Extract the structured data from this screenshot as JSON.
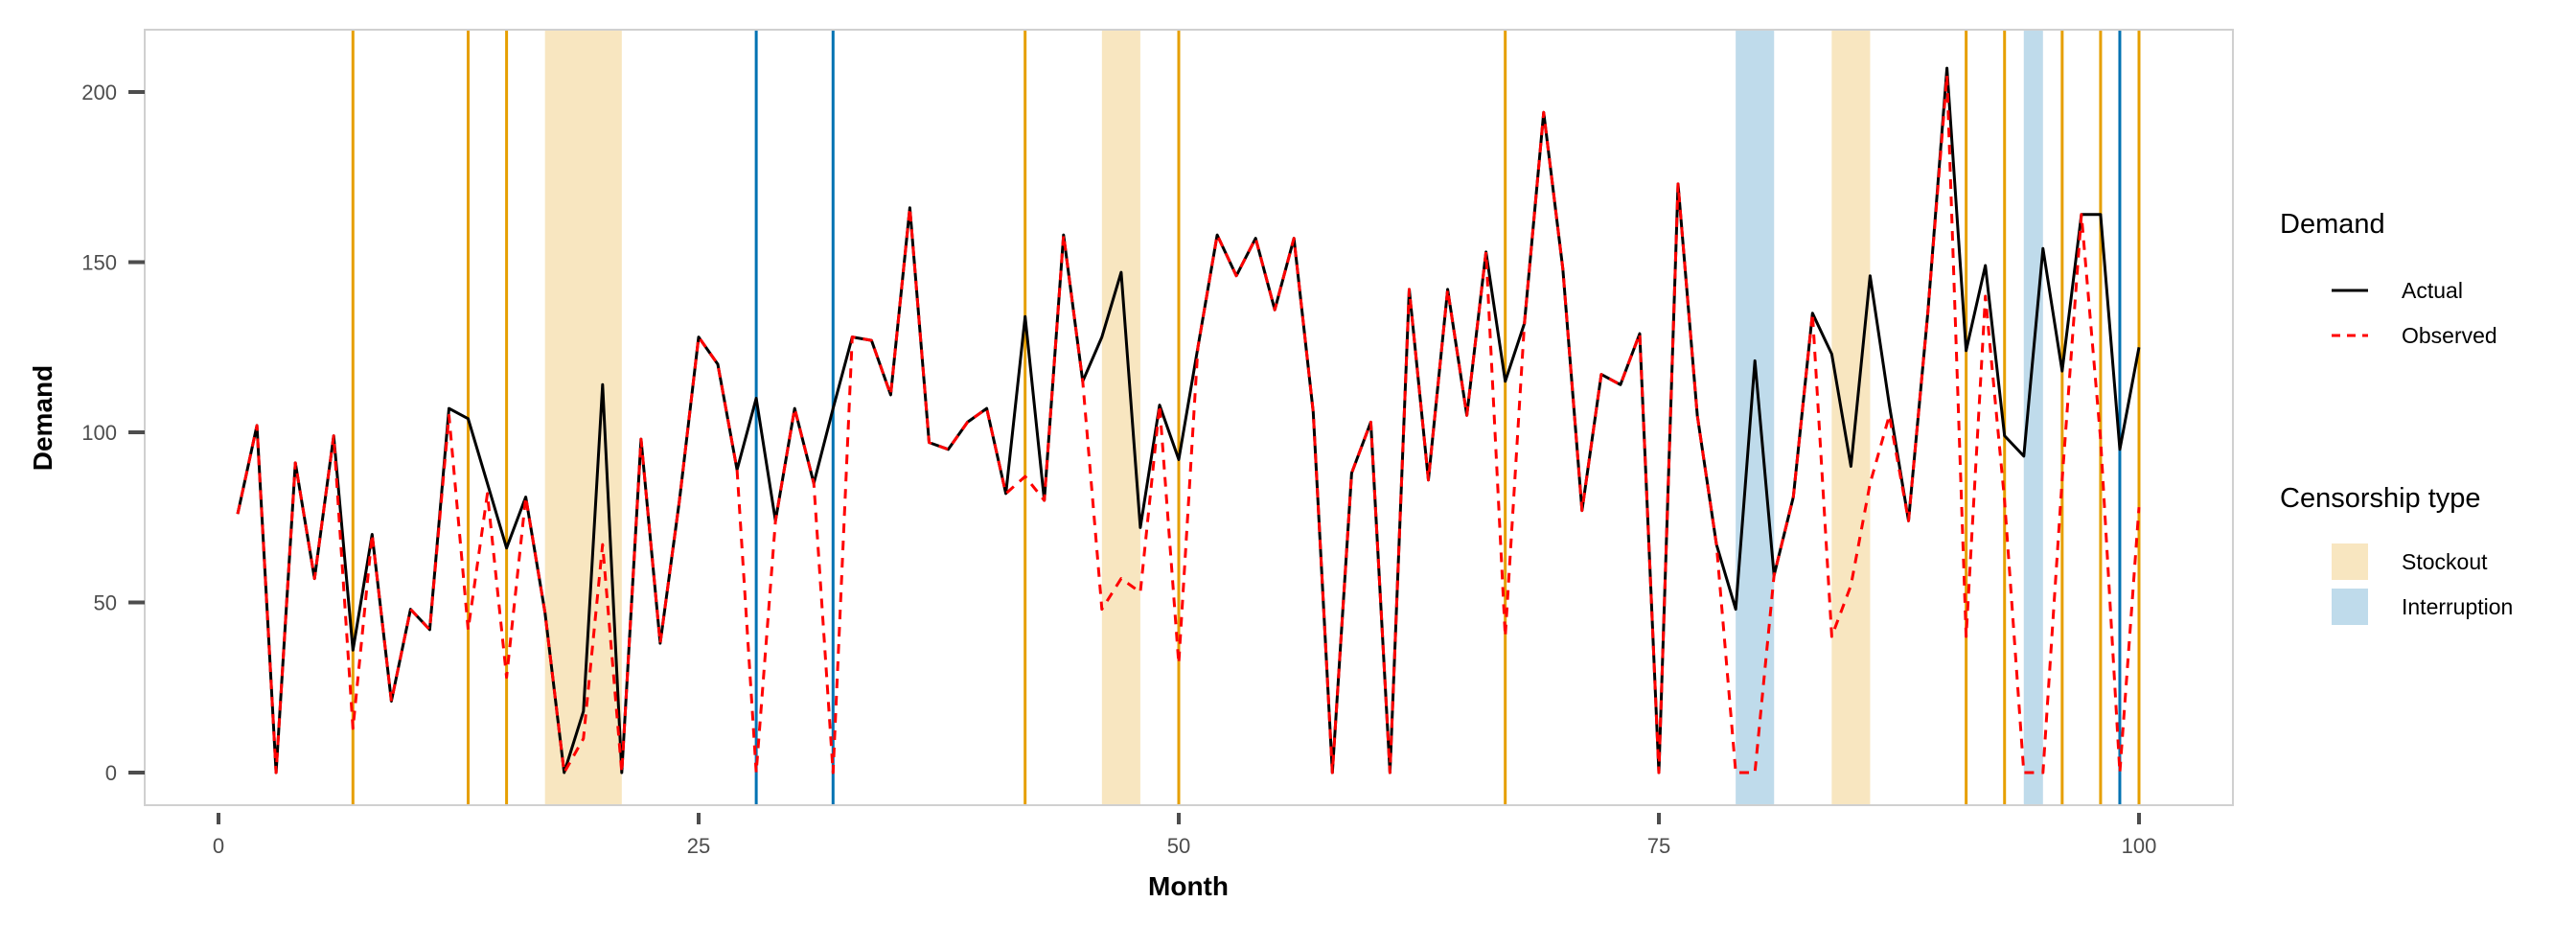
{
  "chart_data": {
    "type": "line",
    "title": "",
    "xlabel": "Month",
    "ylabel": "Demand",
    "xlim": [
      -3,
      105
    ],
    "ylim": [
      -10,
      218
    ],
    "xticks": [
      0,
      25,
      50,
      75,
      100
    ],
    "yticks": [
      0,
      50,
      100,
      150,
      200
    ],
    "grid": false,
    "x": [
      1,
      2,
      3,
      4,
      5,
      6,
      7,
      8,
      9,
      10,
      11,
      12,
      13,
      14,
      15,
      16,
      17,
      18,
      19,
      20,
      21,
      22,
      23,
      24,
      25,
      26,
      27,
      28,
      29,
      30,
      31,
      32,
      33,
      34,
      35,
      36,
      37,
      38,
      39,
      40,
      41,
      42,
      43,
      44,
      45,
      46,
      47,
      48,
      49,
      50,
      51,
      52,
      53,
      54,
      55,
      56,
      57,
      58,
      59,
      60,
      61,
      62,
      63,
      64,
      65,
      66,
      67,
      68,
      69,
      70,
      71,
      72,
      73,
      74,
      75,
      76,
      77,
      78,
      79,
      80,
      81,
      82,
      83,
      84,
      85,
      86,
      87,
      88,
      89,
      90,
      91,
      92,
      93,
      94,
      95,
      96,
      97,
      98,
      99,
      100
    ],
    "series": [
      {
        "name": "Actual",
        "color": "#000000",
        "dash": "solid",
        "values": [
          76,
          102,
          0,
          91,
          57,
          99,
          36,
          70,
          21,
          48,
          42,
          107,
          104,
          85,
          66,
          81,
          47,
          0,
          18,
          114,
          0,
          98,
          38,
          80,
          128,
          120,
          89,
          110,
          74,
          107,
          85,
          107,
          128,
          127,
          111,
          166,
          97,
          95,
          103,
          107,
          82,
          134,
          80,
          158,
          115,
          128,
          147,
          72,
          108,
          92,
          125,
          158,
          146,
          157,
          136,
          157,
          106,
          0,
          88,
          103,
          0,
          142,
          86,
          142,
          105,
          153,
          115,
          132,
          194,
          148,
          77,
          117,
          114,
          129,
          0,
          173,
          105,
          67,
          48,
          121,
          58,
          81,
          135,
          123,
          90,
          146,
          108,
          74,
          135,
          207,
          124,
          149,
          99,
          93,
          154,
          118,
          164,
          164,
          95,
          125
        ]
      },
      {
        "name": "Observed",
        "color": "#FF0000",
        "dash": "dashed",
        "values": [
          76,
          102,
          0,
          91,
          57,
          99,
          13,
          70,
          21,
          48,
          42,
          105,
          42,
          82,
          28,
          81,
          47,
          0,
          10,
          67,
          0,
          98,
          38,
          80,
          128,
          120,
          89,
          0,
          74,
          107,
          85,
          0,
          128,
          127,
          111,
          166,
          97,
          95,
          103,
          107,
          82,
          87,
          80,
          158,
          115,
          48,
          57,
          53,
          108,
          32,
          125,
          158,
          146,
          157,
          136,
          157,
          106,
          0,
          88,
          103,
          0,
          142,
          86,
          142,
          105,
          153,
          40,
          132,
          194,
          148,
          77,
          117,
          114,
          129,
          0,
          173,
          105,
          67,
          0,
          0,
          58,
          81,
          135,
          40,
          55,
          85,
          105,
          74,
          135,
          205,
          40,
          140,
          80,
          0,
          0,
          86,
          164,
          98,
          0,
          78
        ]
      }
    ],
    "censorship_periods": [
      {
        "type": "Stockout",
        "start": 17,
        "end": 21
      },
      {
        "type": "Stockout",
        "start": 46,
        "end": 48
      },
      {
        "type": "Interruption",
        "start": 79,
        "end": 81
      },
      {
        "type": "Stockout",
        "start": 84,
        "end": 86
      },
      {
        "type": "Interruption",
        "start": 94,
        "end": 95
      }
    ],
    "censorship_events": [
      {
        "type": "Stockout",
        "month": 7
      },
      {
        "type": "Stockout",
        "month": 13
      },
      {
        "type": "Stockout",
        "month": 15
      },
      {
        "type": "Interruption",
        "month": 28
      },
      {
        "type": "Interruption",
        "month": 32
      },
      {
        "type": "Stockout",
        "month": 42
      },
      {
        "type": "Stockout",
        "month": 50
      },
      {
        "type": "Stockout",
        "month": 67
      },
      {
        "type": "Stockout",
        "month": 91
      },
      {
        "type": "Stockout",
        "month": 93
      },
      {
        "type": "Stockout",
        "month": 96
      },
      {
        "type": "Stockout",
        "month": 98
      },
      {
        "type": "Interruption",
        "month": 99
      },
      {
        "type": "Stockout",
        "month": 100
      }
    ],
    "colors": {
      "Stockout_line": "#E69F00",
      "Interruption_line": "#0072B2",
      "Stockout_fill": "#F8E6C0",
      "Interruption_fill": "#BFDBEB"
    },
    "legend": {
      "placement": "right",
      "demand_title": "Demand",
      "demand_items": [
        "Actual",
        "Observed"
      ],
      "censorship_title": "Censorship type",
      "censorship_items": [
        "Stockout",
        "Interruption"
      ]
    }
  }
}
